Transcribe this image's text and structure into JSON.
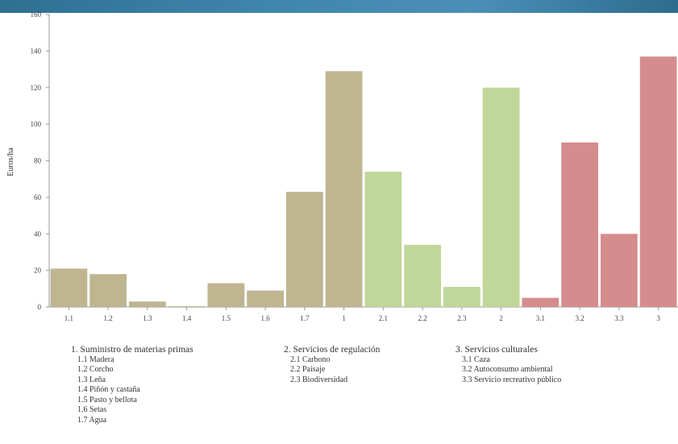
{
  "chart_data": {
    "type": "bar",
    "ylabel": "Euros/ha",
    "ylim": [
      0,
      160
    ],
    "yticks": [
      0,
      20,
      40,
      60,
      80,
      100,
      120,
      140,
      160
    ],
    "categories": [
      "1.1",
      "1.2",
      "1.3",
      "1.4",
      "1.5",
      "1.6",
      "1.7",
      "1",
      "2.1",
      "2.2",
      "2.3",
      "2",
      "3.1",
      "3.2",
      "3.3",
      "3"
    ],
    "values": [
      21,
      18,
      3,
      0,
      13,
      9,
      63,
      129,
      74,
      34,
      11,
      120,
      5,
      90,
      40,
      137
    ],
    "groups": [
      0,
      0,
      0,
      0,
      0,
      0,
      0,
      0,
      1,
      1,
      1,
      1,
      2,
      2,
      2,
      2
    ],
    "colors": [
      "#bfb591",
      "#c0d79a",
      "#d58c8c"
    ],
    "grid": false
  },
  "legend": [
    {
      "title": "1. Suministro de materias primas",
      "items": [
        "1.1 Madera",
        "1.2 Corcho",
        "1.3 Leña",
        "1.4 Piñón y castaña",
        "1.5 Pasto y bellota",
        "1.6 Setas",
        "1.7 Agua"
      ]
    },
    {
      "title": "2. Servicios de regulación",
      "items": [
        "2.1 Carbono",
        "2.2 Paisaje",
        "2.3 Biodiversidad"
      ]
    },
    {
      "title": "3. Servicios culturales",
      "items": [
        "3.1 Caza",
        "3.2 Autoconsumo ambiental",
        "3.3 Servicio recreativo público"
      ]
    }
  ]
}
